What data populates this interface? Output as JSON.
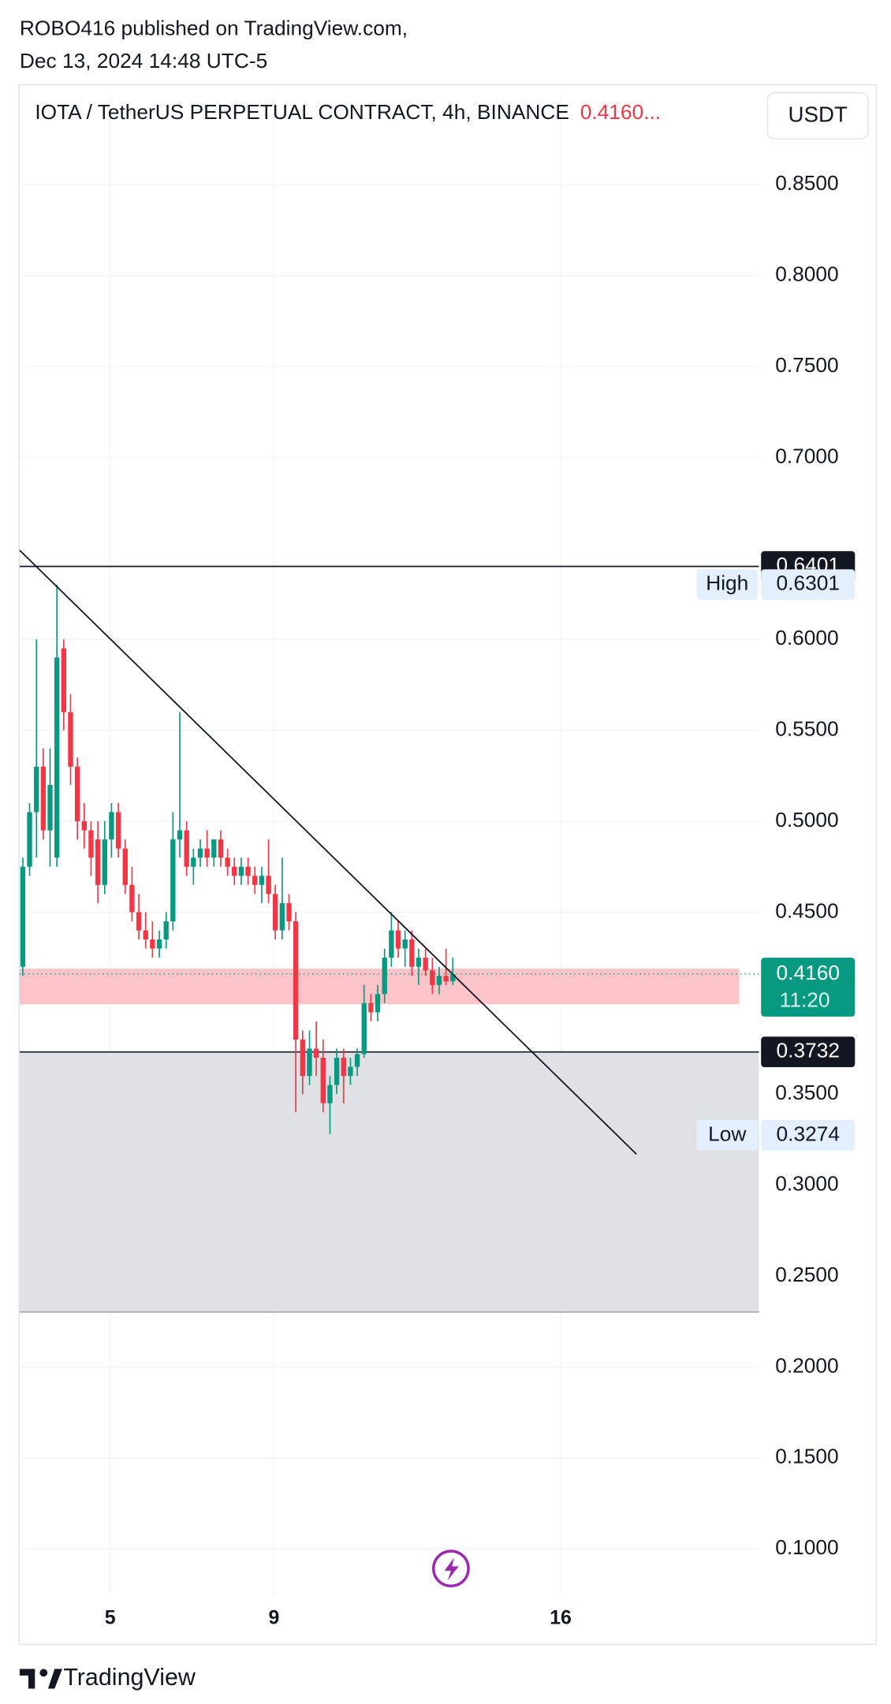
{
  "header": {
    "publisher": "ROBO416 published on TradingView.com,",
    "date": "Dec 13, 2024 14:48 UTC-5",
    "brand": "TradingView"
  },
  "chart_data": {
    "type": "candlestick",
    "title": "IOTA / TetherUS PERPETUAL CONTRACT, 4h, BINANCE",
    "title_price": "0.4160...",
    "currency": "USDT",
    "up_color": "#089981",
    "down_color": "#f23645",
    "x": [
      2.867,
      3.033,
      3.2,
      3.367,
      3.533,
      3.7,
      3.867,
      4.033,
      4.2,
      4.367,
      4.533,
      4.7,
      4.867,
      5.033,
      5.2,
      5.367,
      5.533,
      5.7,
      5.867,
      6.033,
      6.2,
      6.367,
      6.533,
      6.7,
      6.867,
      7.033,
      7.2,
      7.367,
      7.533,
      7.7,
      7.867,
      8.033,
      8.2,
      8.367,
      8.533,
      8.7,
      8.867,
      9.033,
      9.2,
      9.367,
      9.533,
      9.7,
      9.867,
      10.033,
      10.2,
      10.367,
      10.533,
      10.7,
      10.867,
      11.033,
      11.2,
      11.367,
      11.533,
      11.7,
      11.867,
      12.033,
      12.2,
      12.367,
      12.533,
      12.7,
      12.867,
      13.033,
      13.2,
      13.367
    ],
    "open": [
      0.42,
      0.475,
      0.505,
      0.53,
      0.495,
      0.48,
      0.595,
      0.56,
      0.53,
      0.5,
      0.495,
      0.49,
      0.465,
      0.49,
      0.505,
      0.485,
      0.465,
      0.45,
      0.44,
      0.435,
      0.43,
      0.435,
      0.445,
      0.49,
      0.495,
      0.475,
      0.48,
      0.485,
      0.48,
      0.49,
      0.48,
      0.475,
      0.47,
      0.475,
      0.47,
      0.465,
      0.47,
      0.46,
      0.44,
      0.455,
      0.445,
      0.38,
      0.36,
      0.375,
      0.37,
      0.345,
      0.355,
      0.37,
      0.36,
      0.365,
      0.372,
      0.4,
      0.395,
      0.405,
      0.425,
      0.44,
      0.43,
      0.435,
      0.42,
      0.425,
      0.418,
      0.41,
      0.415,
      0.412
    ],
    "high": [
      0.48,
      0.51,
      0.6,
      0.54,
      0.54,
      0.63,
      0.6,
      0.57,
      0.535,
      0.51,
      0.5,
      0.5,
      0.5,
      0.51,
      0.51,
      0.49,
      0.475,
      0.46,
      0.45,
      0.445,
      0.44,
      0.45,
      0.505,
      0.56,
      0.5,
      0.485,
      0.49,
      0.495,
      0.49,
      0.495,
      0.485,
      0.48,
      0.48,
      0.48,
      0.475,
      0.475,
      0.49,
      0.465,
      0.48,
      0.46,
      0.45,
      0.385,
      0.385,
      0.39,
      0.38,
      0.36,
      0.375,
      0.375,
      0.37,
      0.375,
      0.41,
      0.405,
      0.41,
      0.43,
      0.45,
      0.445,
      0.44,
      0.44,
      0.43,
      0.43,
      0.425,
      0.42,
      0.43,
      0.425
    ],
    "low": [
      0.415,
      0.47,
      0.48,
      0.49,
      0.475,
      0.475,
      0.55,
      0.52,
      0.49,
      0.485,
      0.47,
      0.455,
      0.46,
      0.48,
      0.48,
      0.46,
      0.445,
      0.435,
      0.43,
      0.425,
      0.425,
      0.43,
      0.44,
      0.48,
      0.47,
      0.465,
      0.475,
      0.475,
      0.475,
      0.475,
      0.47,
      0.465,
      0.465,
      0.465,
      0.46,
      0.455,
      0.455,
      0.435,
      0.435,
      0.44,
      0.34,
      0.35,
      0.355,
      0.36,
      0.34,
      0.328,
      0.35,
      0.345,
      0.355,
      0.36,
      0.37,
      0.39,
      0.39,
      0.4,
      0.42,
      0.425,
      0.42,
      0.415,
      0.41,
      0.415,
      0.405,
      0.405,
      0.41,
      0.41
    ],
    "close": [
      0.475,
      0.505,
      0.53,
      0.495,
      0.52,
      0.59,
      0.56,
      0.53,
      0.5,
      0.495,
      0.48,
      0.465,
      0.49,
      0.505,
      0.485,
      0.465,
      0.45,
      0.44,
      0.435,
      0.43,
      0.435,
      0.445,
      0.49,
      0.495,
      0.475,
      0.48,
      0.485,
      0.48,
      0.49,
      0.48,
      0.475,
      0.47,
      0.475,
      0.47,
      0.465,
      0.47,
      0.46,
      0.44,
      0.455,
      0.445,
      0.38,
      0.36,
      0.375,
      0.37,
      0.345,
      0.355,
      0.37,
      0.36,
      0.365,
      0.372,
      0.4,
      0.395,
      0.405,
      0.425,
      0.44,
      0.43,
      0.435,
      0.42,
      0.425,
      0.418,
      0.41,
      0.415,
      0.412,
      0.416
    ],
    "xlim": [
      2.79,
      20.84
    ],
    "xticks": [
      5,
      9,
      16
    ],
    "ylim": [
      0.0754,
      0.8992
    ],
    "yticks": [
      {
        "value": 0.85,
        "label": "0.8500"
      },
      {
        "value": 0.8,
        "label": "0.8000"
      },
      {
        "value": 0.75,
        "label": "0.7500"
      },
      {
        "value": 0.7,
        "label": "0.7000"
      },
      {
        "value": 0.6,
        "label": "0.6000"
      },
      {
        "value": 0.55,
        "label": "0.5500"
      },
      {
        "value": 0.5,
        "label": "0.5000"
      },
      {
        "value": 0.45,
        "label": "0.4500"
      },
      {
        "value": 0.35,
        "label": "0.3500"
      },
      {
        "value": 0.3,
        "label": "0.3000"
      },
      {
        "value": 0.25,
        "label": "0.2500"
      },
      {
        "value": 0.2,
        "label": "0.2000"
      },
      {
        "value": 0.15,
        "label": "0.1500"
      },
      {
        "value": 0.1,
        "label": "0.1000"
      }
    ],
    "grid": true,
    "levels": [
      {
        "value": 0.6401,
        "label": "0.6401"
      },
      {
        "value": 0.3732,
        "label": "0.3732"
      }
    ],
    "extremes": [
      {
        "name": "High",
        "value": 0.6301,
        "label": "0.6301"
      },
      {
        "name": "Low",
        "value": 0.3274,
        "label": "0.3274"
      }
    ],
    "current": {
      "value": 0.416,
      "label": "0.4160",
      "countdown": "11:20"
    },
    "zones": [
      {
        "from": 0.3732,
        "to": 0.2302,
        "color": "#e0e1e4"
      },
      {
        "from": 0.419,
        "to": 0.3994,
        "color": "#fcc3c8"
      }
    ],
    "trendline": {
      "x": [
        2.79,
        17.85
      ],
      "y": [
        0.649,
        0.317
      ]
    }
  }
}
